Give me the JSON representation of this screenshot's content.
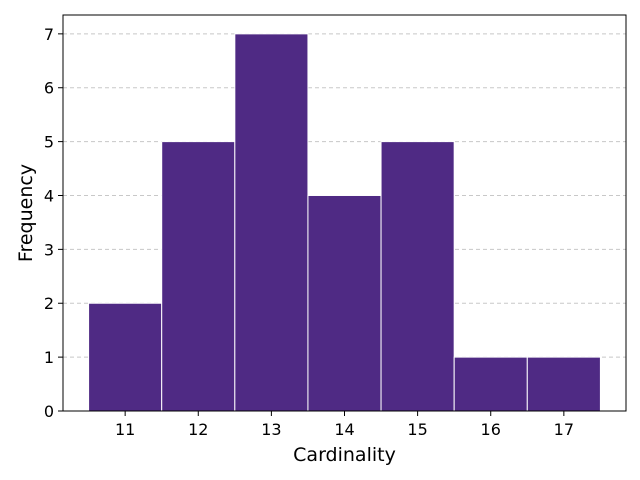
{
  "chart_data": {
    "type": "bar",
    "title": "",
    "xlabel": "Cardinality",
    "ylabel": "Frequency",
    "categories": [
      "11",
      "12",
      "13",
      "14",
      "15",
      "16",
      "17"
    ],
    "x": [
      11,
      12,
      13,
      14,
      15,
      16,
      17
    ],
    "values": [
      2,
      5,
      7,
      4,
      5,
      1,
      1
    ],
    "xlim": [
      10.15,
      17.85
    ],
    "ylim": [
      0,
      7.35
    ],
    "y_ticks": [
      "0",
      "1",
      "2",
      "3",
      "4",
      "5",
      "6",
      "7"
    ],
    "grid": "y-dashed",
    "bar_color": "#4f2a84",
    "bar_edge_color": "#ffffff",
    "grid_color": "#c8c8c8"
  }
}
